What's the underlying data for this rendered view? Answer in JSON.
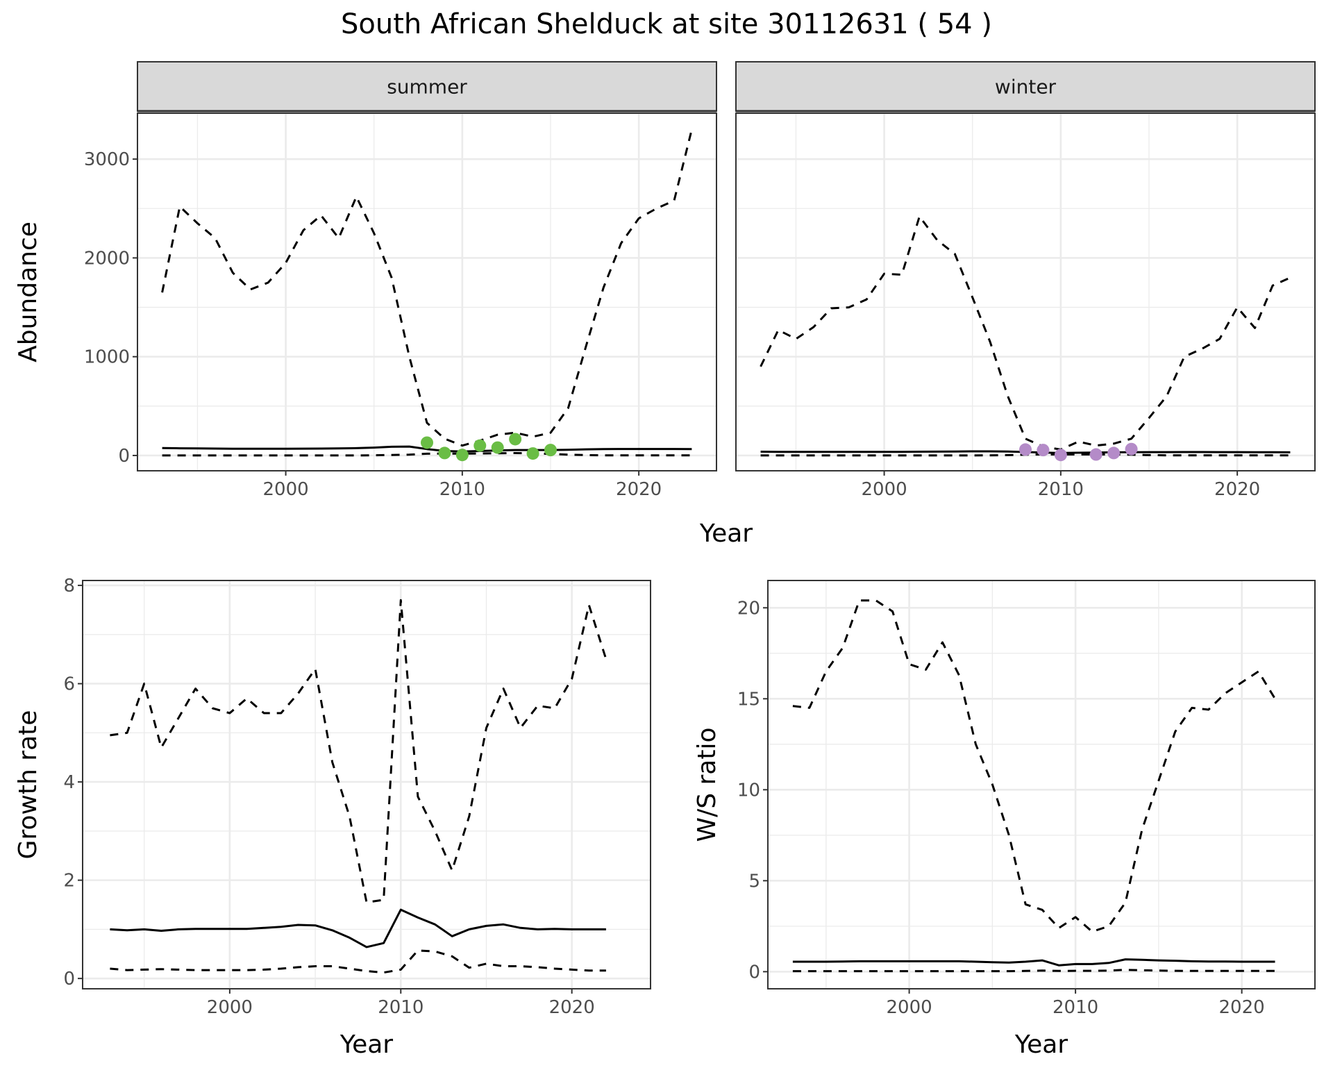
{
  "title": "South African Shelduck at site 30112631 ( 54 )",
  "colors": {
    "summer_points": "#6ABD45",
    "winter_points": "#B48BC8",
    "lines": "#000000",
    "strip": "#D9D9D9",
    "grid": "#EBEBEB"
  },
  "chart_data": [
    {
      "type": "line",
      "facet": "summer",
      "xlabel": "Year",
      "ylabel": "Abundance",
      "xlim": [
        1991.6,
        2024.4
      ],
      "ylim": [
        -155,
        3465
      ],
      "xticks": [
        2000,
        2010,
        2020
      ],
      "yticks": [
        0,
        1000,
        2000,
        3000
      ],
      "grid": true,
      "x": [
        1993,
        1994,
        1995,
        1996,
        1997,
        1998,
        1999,
        2000,
        2001,
        2002,
        2003,
        2004,
        2005,
        2006,
        2007,
        2008,
        2009,
        2010,
        2011,
        2012,
        2013,
        2014,
        2015,
        2016,
        2017,
        2018,
        2019,
        2020,
        2021,
        2022,
        2023
      ],
      "series": [
        {
          "style": "dashed",
          "values": [
            1650,
            2520,
            2350,
            2200,
            1850,
            1680,
            1750,
            1950,
            2280,
            2430,
            2200,
            2620,
            2250,
            1800,
            1000,
            330,
            170,
            100,
            150,
            210,
            230,
            190,
            230,
            480,
            1100,
            1700,
            2150,
            2400,
            2500,
            2580,
            3300
          ]
        },
        {
          "style": "solid",
          "values": [
            75,
            73,
            72,
            70,
            68,
            68,
            68,
            68,
            69,
            70,
            71,
            74,
            80,
            88,
            90,
            65,
            45,
            40,
            45,
            50,
            55,
            55,
            55,
            58,
            62,
            65,
            66,
            66,
            66,
            66,
            65
          ]
        },
        {
          "style": "dashed",
          "values": [
            0,
            0,
            0,
            0,
            0,
            0,
            0,
            0,
            0,
            0,
            0,
            0,
            2,
            5,
            8,
            18,
            20,
            18,
            20,
            22,
            24,
            22,
            15,
            8,
            4,
            2,
            1,
            1,
            1,
            1,
            1
          ]
        }
      ],
      "points": {
        "x": [
          2008,
          2009,
          2010,
          2011,
          2012,
          2013,
          2014,
          2015
        ],
        "y": [
          130,
          25,
          5,
          100,
          80,
          165,
          20,
          55
        ]
      }
    },
    {
      "type": "line",
      "facet": "winter",
      "xlabel": "Year",
      "ylabel": "Abundance",
      "xlim": [
        1991.6,
        2024.4
      ],
      "ylim": [
        -155,
        3465
      ],
      "xticks": [
        2000,
        2010,
        2020
      ],
      "yticks": [
        0,
        1000,
        2000,
        3000
      ],
      "grid": true,
      "x": [
        1993,
        1994,
        1995,
        1996,
        1997,
        1998,
        1999,
        2000,
        2001,
        2002,
        2003,
        2004,
        2005,
        2006,
        2007,
        2008,
        2009,
        2010,
        2011,
        2012,
        2013,
        2014,
        2015,
        2016,
        2017,
        2018,
        2019,
        2020,
        2021,
        2022,
        2023
      ],
      "series": [
        {
          "style": "dashed",
          "values": [
            900,
            1270,
            1180,
            1300,
            1490,
            1500,
            1580,
            1840,
            1830,
            2420,
            2180,
            2040,
            1600,
            1150,
            600,
            170,
            90,
            60,
            140,
            100,
            120,
            170,
            380,
            600,
            1000,
            1080,
            1180,
            1500,
            1290,
            1720,
            1800
          ]
        },
        {
          "style": "solid",
          "values": [
            38,
            37,
            36,
            36,
            36,
            36,
            36,
            37,
            37,
            38,
            39,
            40,
            42,
            42,
            40,
            35,
            30,
            25,
            28,
            30,
            32,
            33,
            34,
            34,
            35,
            35,
            34,
            34,
            33,
            33,
            32
          ]
        },
        {
          "style": "dashed",
          "values": [
            0,
            0,
            0,
            0,
            0,
            0,
            0,
            0,
            0,
            0,
            0,
            0,
            0,
            2,
            4,
            8,
            10,
            10,
            10,
            10,
            10,
            8,
            4,
            2,
            1,
            1,
            1,
            1,
            1,
            1,
            1
          ]
        }
      ],
      "points": {
        "x": [
          2008,
          2009,
          2010,
          2012,
          2013,
          2014
        ],
        "y": [
          60,
          55,
          5,
          10,
          25,
          65
        ]
      }
    },
    {
      "type": "line",
      "xlabel": "Year",
      "ylabel": "Growth rate",
      "xlim": [
        1991.4,
        2024.6
      ],
      "ylim": [
        -0.21,
        8.1
      ],
      "xticks": [
        2000,
        2010,
        2020
      ],
      "yticks": [
        0,
        2,
        4,
        6,
        8
      ],
      "grid": true,
      "x": [
        1993,
        1994,
        1995,
        1996,
        1997,
        1998,
        1999,
        2000,
        2001,
        2002,
        2003,
        2004,
        2005,
        2006,
        2007,
        2008,
        2009,
        2010,
        2011,
        2012,
        2013,
        2014,
        2015,
        2016,
        2017,
        2018,
        2019,
        2020,
        2021,
        2022
      ],
      "series": [
        {
          "style": "dashed",
          "values": [
            4.95,
            5.0,
            6.0,
            4.7,
            5.3,
            5.9,
            5.5,
            5.4,
            5.7,
            5.4,
            5.4,
            5.8,
            6.3,
            4.4,
            3.3,
            1.55,
            1.6,
            7.7,
            3.7,
            3.0,
            2.2,
            3.3,
            5.1,
            5.9,
            5.1,
            5.55,
            5.5,
            6.1,
            7.6,
            6.5
          ]
        },
        {
          "style": "solid",
          "values": [
            1.0,
            0.98,
            1.0,
            0.97,
            1.0,
            1.01,
            1.01,
            1.01,
            1.01,
            1.03,
            1.05,
            1.09,
            1.08,
            0.98,
            0.83,
            0.64,
            0.72,
            1.4,
            1.24,
            1.1,
            0.86,
            1.0,
            1.07,
            1.1,
            1.03,
            1.0,
            1.01,
            1.0,
            1.0,
            1.0
          ]
        },
        {
          "style": "dashed",
          "values": [
            0.2,
            0.17,
            0.18,
            0.19,
            0.18,
            0.17,
            0.17,
            0.17,
            0.17,
            0.18,
            0.2,
            0.23,
            0.25,
            0.25,
            0.2,
            0.15,
            0.12,
            0.18,
            0.57,
            0.55,
            0.45,
            0.22,
            0.3,
            0.25,
            0.25,
            0.23,
            0.2,
            0.18,
            0.16,
            0.16
          ]
        }
      ]
    },
    {
      "type": "line",
      "xlabel": "Year",
      "ylabel": "W/S ratio",
      "xlim": [
        1991.5,
        2024.4
      ],
      "ylim": [
        -0.94,
        21.5
      ],
      "xticks": [
        2000,
        2010,
        2020
      ],
      "yticks": [
        0,
        5,
        10,
        15,
        20
      ],
      "grid": true,
      "x": [
        1993,
        1994,
        1995,
        1996,
        1997,
        1998,
        1999,
        2000,
        2001,
        2002,
        2003,
        2004,
        2005,
        2006,
        2007,
        2008,
        2009,
        2010,
        2011,
        2012,
        2013,
        2014,
        2015,
        2016,
        2017,
        2018,
        2019,
        2020,
        2021,
        2022
      ],
      "series": [
        {
          "style": "dashed",
          "values": [
            14.6,
            14.5,
            16.5,
            17.8,
            20.4,
            20.4,
            19.8,
            16.9,
            16.6,
            18.1,
            16.3,
            12.5,
            10.3,
            7.5,
            3.7,
            3.4,
            2.4,
            3.0,
            2.2,
            2.5,
            3.8,
            7.8,
            10.5,
            13.2,
            14.5,
            14.4,
            15.3,
            15.9,
            16.5,
            15.0
          ]
        },
        {
          "style": "solid",
          "values": [
            0.55,
            0.55,
            0.55,
            0.56,
            0.57,
            0.57,
            0.57,
            0.57,
            0.57,
            0.57,
            0.57,
            0.55,
            0.52,
            0.5,
            0.55,
            0.62,
            0.35,
            0.42,
            0.42,
            0.48,
            0.68,
            0.65,
            0.62,
            0.6,
            0.57,
            0.56,
            0.56,
            0.55,
            0.55,
            0.55
          ]
        },
        {
          "style": "dashed",
          "values": [
            0.03,
            0.03,
            0.03,
            0.03,
            0.03,
            0.03,
            0.03,
            0.03,
            0.03,
            0.03,
            0.03,
            0.03,
            0.03,
            0.03,
            0.04,
            0.06,
            0.04,
            0.05,
            0.05,
            0.06,
            0.1,
            0.08,
            0.06,
            0.05,
            0.04,
            0.04,
            0.04,
            0.04,
            0.04,
            0.04
          ]
        }
      ]
    }
  ]
}
